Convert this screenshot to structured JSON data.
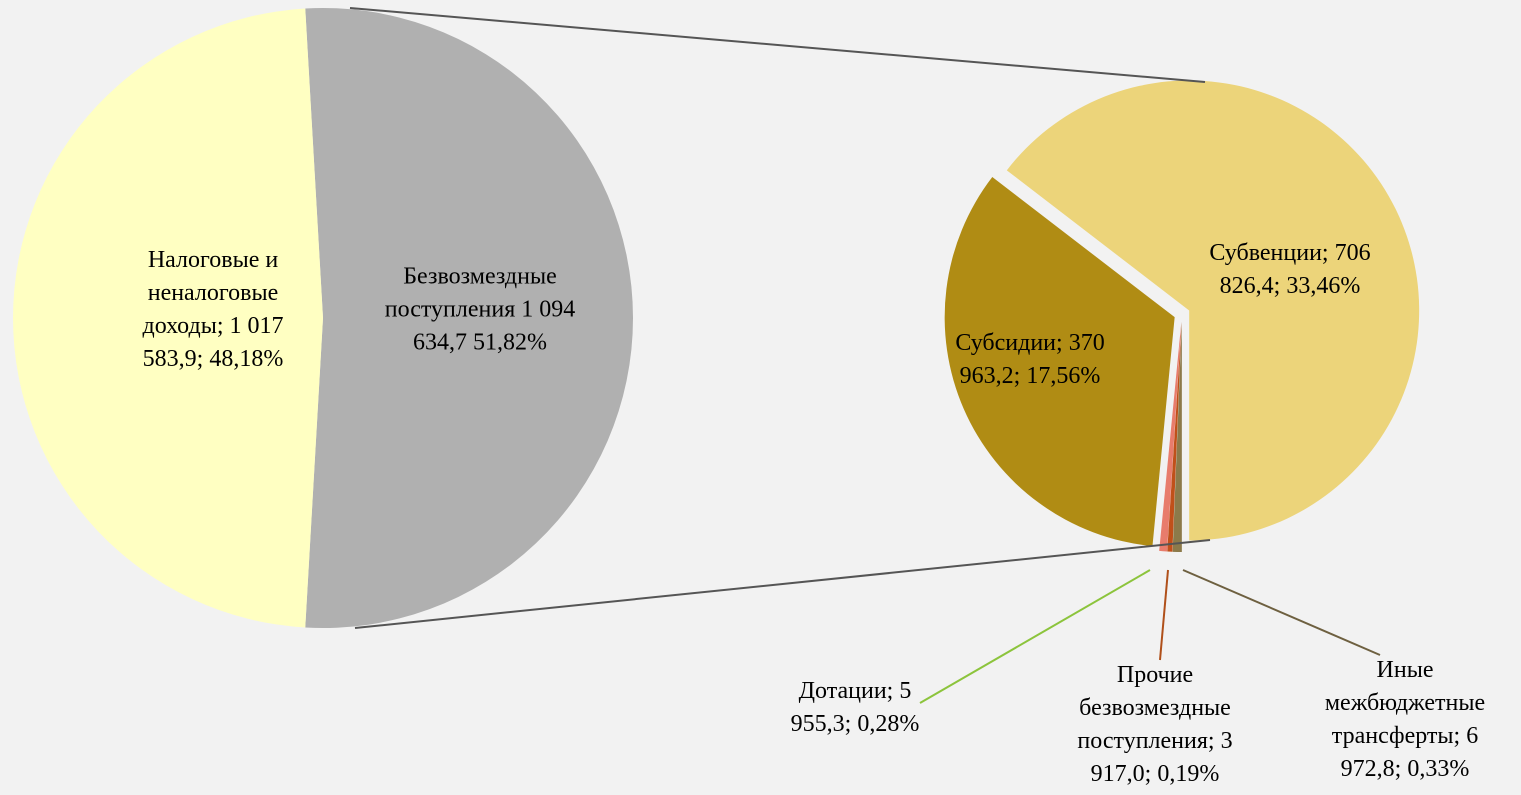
{
  "chart_data": {
    "type": "pie_of_pie",
    "main": {
      "labels": [
        "Налоговые и неналоговые доходы;",
        "Безвозмездные поступления"
      ],
      "values": [
        1017583.9,
        1094634.7
      ],
      "value_labels": [
        "1 017 583,9;",
        "1 094 634,7"
      ],
      "percents": [
        48.18,
        51.82
      ],
      "percent_labels": [
        "48,18%",
        "51,82%"
      ],
      "colors": [
        "#ffffc2",
        "#b0b0b0"
      ]
    },
    "detail": {
      "labels": [
        "Субвенции;",
        "Субсидии;",
        "Дотации;",
        "Прочие безвозмездные поступления;",
        "Иные межбюджетные трансферты;"
      ],
      "values": [
        706826.4,
        370963.2,
        5955.3,
        3917.0,
        6972.8
      ],
      "value_labels": [
        "706 826,4;",
        "370 963,2;",
        "5 955,3;",
        "3 917,0;",
        "6 972,8;"
      ],
      "percents": [
        33.46,
        17.56,
        0.28,
        0.19,
        0.33
      ],
      "percent_labels": [
        "33,46%",
        "17,56%",
        "0,28%",
        "0,19%",
        "0,33%"
      ],
      "colors": [
        "#ecd47a",
        "#b08c14",
        "#e87c6c",
        "#c0501a",
        "#8c7a4a"
      ]
    }
  }
}
